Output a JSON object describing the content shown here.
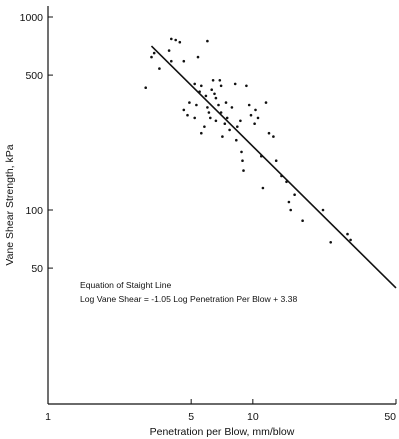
{
  "chart_data": {
    "type": "scatter",
    "title": "",
    "xlabel": "Penetration per Blow, mm/blow",
    "ylabel": "Vane Shear Strength, kPa",
    "xscale": "log",
    "yscale": "log",
    "xlim": [
      1,
      50
    ],
    "ylim": [
      20,
      1000
    ],
    "x_ticks": [
      1,
      5,
      10,
      50
    ],
    "x_tick_labels": [
      "1",
      "5",
      "10",
      "50"
    ],
    "y_ticks": [
      50,
      100,
      500,
      1000
    ],
    "y_tick_labels": [
      "50",
      "100",
      "500",
      "1000"
    ],
    "grid": false,
    "legend": "none",
    "color": "#111111",
    "annotation": {
      "line1": "Equation of Staight Line",
      "line2": "Log Vane Shear = -1.05 Log Penetration Per Blow + 3.38"
    },
    "fit_line": {
      "slope": -1.05,
      "intercept": 3.38,
      "x_range": [
        3.2,
        50
      ]
    },
    "points": [
      [
        3.0,
        430
      ],
      [
        3.2,
        620
      ],
      [
        3.3,
        650
      ],
      [
        3.5,
        540
      ],
      [
        3.9,
        670
      ],
      [
        4.0,
        770
      ],
      [
        4.2,
        760
      ],
      [
        4.4,
        740
      ],
      [
        4.6,
        590
      ],
      [
        4.0,
        590
      ],
      [
        5.2,
        450
      ],
      [
        5.4,
        620
      ],
      [
        4.6,
        330
      ],
      [
        4.8,
        310
      ],
      [
        4.9,
        360
      ],
      [
        5.2,
        300
      ],
      [
        5.3,
        350
      ],
      [
        5.5,
        410
      ],
      [
        5.6,
        440
      ],
      [
        5.6,
        250
      ],
      [
        5.8,
        270
      ],
      [
        5.9,
        390
      ],
      [
        6.0,
        750
      ],
      [
        6.0,
        340
      ],
      [
        6.1,
        320
      ],
      [
        6.2,
        300
      ],
      [
        6.3,
        420
      ],
      [
        6.4,
        470
      ],
      [
        6.5,
        400
      ],
      [
        6.6,
        380
      ],
      [
        6.6,
        290
      ],
      [
        6.8,
        350
      ],
      [
        6.9,
        470
      ],
      [
        7.0,
        440
      ],
      [
        7.0,
        320
      ],
      [
        7.1,
        240
      ],
      [
        7.3,
        280
      ],
      [
        7.4,
        360
      ],
      [
        7.5,
        300
      ],
      [
        7.7,
        260
      ],
      [
        7.9,
        340
      ],
      [
        8.2,
        450
      ],
      [
        8.3,
        230
      ],
      [
        8.4,
        270
      ],
      [
        8.7,
        290
      ],
      [
        8.8,
        200
      ],
      [
        8.9,
        180
      ],
      [
        9.0,
        160
      ],
      [
        9.3,
        440
      ],
      [
        9.6,
        350
      ],
      [
        9.8,
        310
      ],
      [
        10.2,
        280
      ],
      [
        10.3,
        330
      ],
      [
        10.6,
        300
      ],
      [
        11.0,
        190
      ],
      [
        11.2,
        130
      ],
      [
        11.6,
        360
      ],
      [
        12.0,
        250
      ],
      [
        12.6,
        240
      ],
      [
        13.0,
        180
      ],
      [
        13.8,
        150
      ],
      [
        14.6,
        140
      ],
      [
        15.0,
        110
      ],
      [
        15.3,
        100
      ],
      [
        16.0,
        120
      ],
      [
        17.5,
        88
      ],
      [
        22.0,
        100
      ],
      [
        24.0,
        68
      ],
      [
        29.0,
        75
      ],
      [
        30.0,
        70
      ]
    ]
  }
}
